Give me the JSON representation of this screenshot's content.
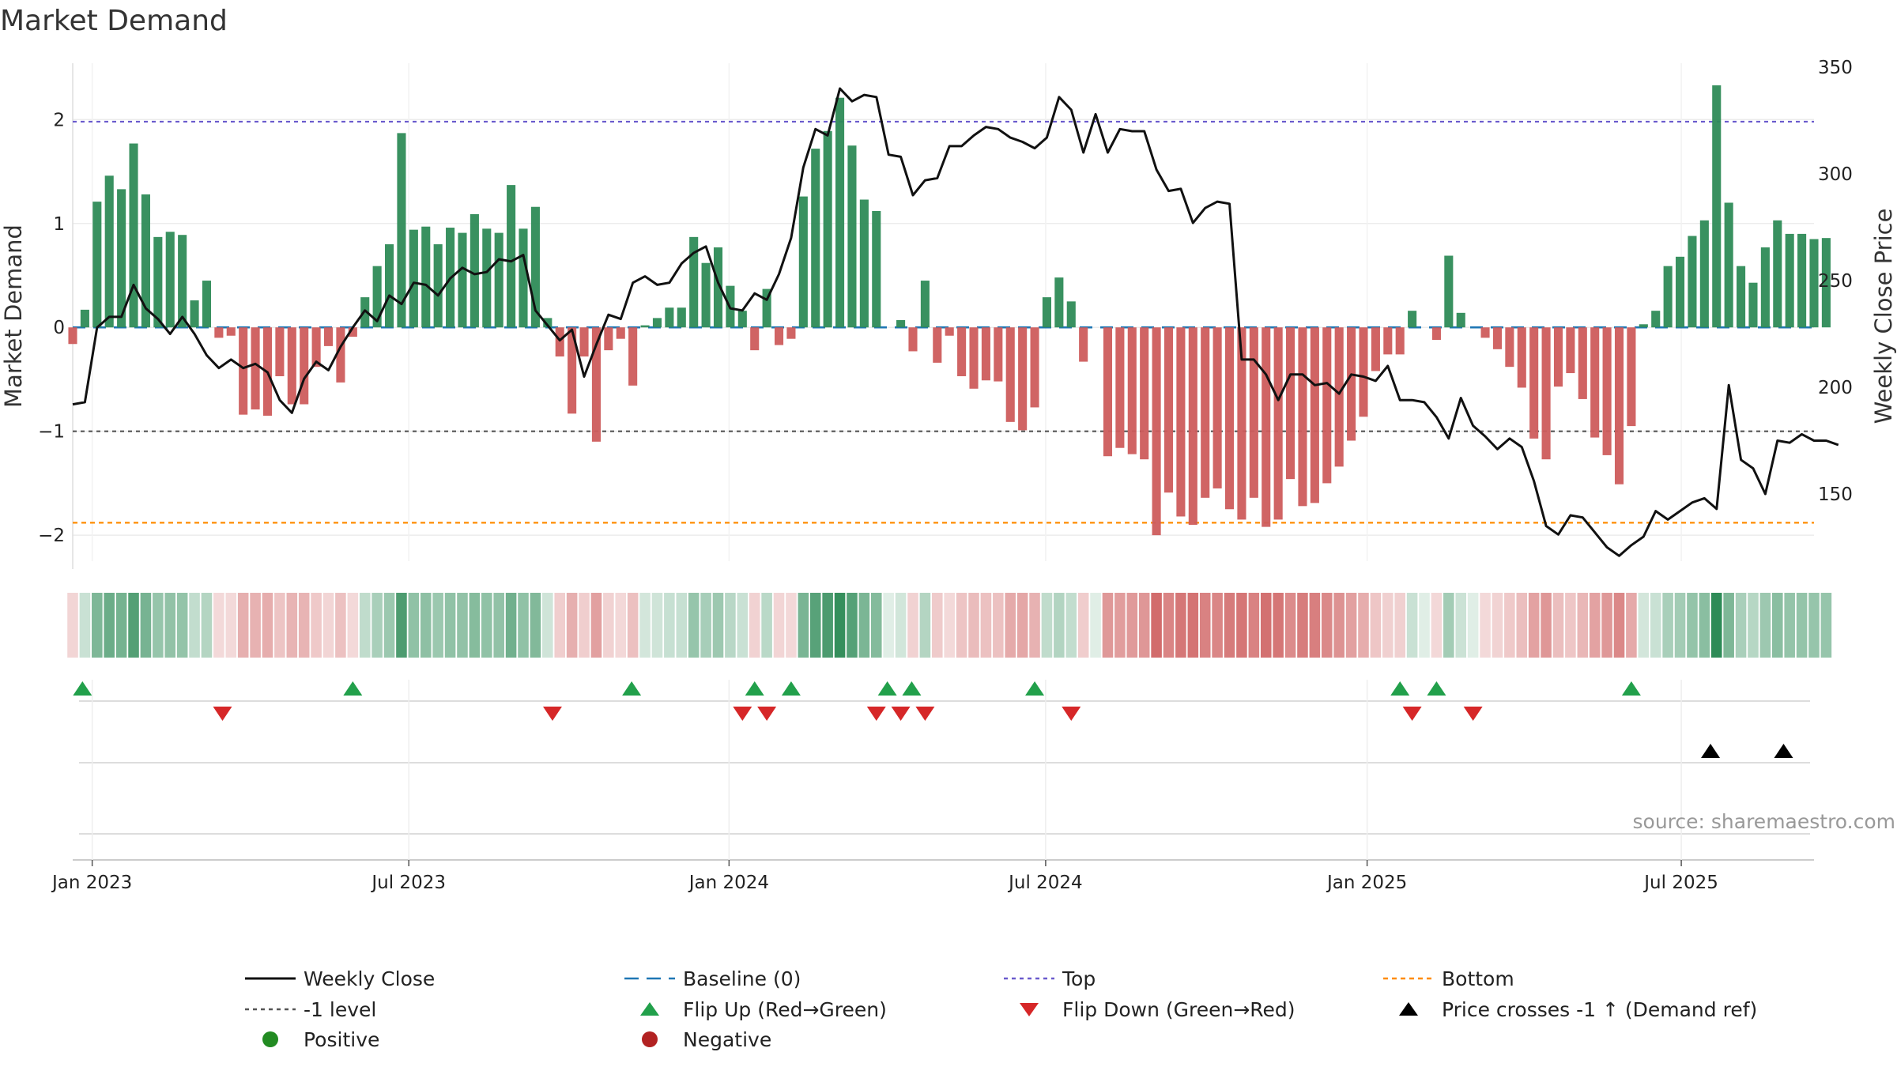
{
  "chart_data": {
    "type": "bar",
    "title": "Market Demand",
    "ylabel": "Market Demand",
    "y2label": "Weekly Close Price",
    "ylim": [
      -2.25,
      2.55
    ],
    "y2lim": [
      115,
      350
    ],
    "yticks": [
      -2,
      -1,
      0,
      1,
      2
    ],
    "y2ticks": [
      150,
      200,
      250,
      300,
      350
    ],
    "x_range_weeks": [
      0,
      143
    ],
    "date_ticks": [
      {
        "label": "Jan 2023",
        "week": 1.6
      },
      {
        "label": "Jul 2023",
        "week": 27.6
      },
      {
        "label": "Jan 2024",
        "week": 53.9
      },
      {
        "label": "Jul 2024",
        "week": 79.9
      },
      {
        "label": "Jan 2025",
        "week": 106.3
      },
      {
        "label": "Jul 2025",
        "week": 132.1
      }
    ],
    "reference_lines": {
      "baseline": 0,
      "top": 1.98,
      "bottom": -1.88,
      "minus_one": -1.0
    },
    "demand_values": [
      -0.16,
      0.17,
      1.21,
      1.46,
      1.33,
      1.77,
      1.28,
      0.87,
      0.92,
      0.89,
      0.26,
      0.45,
      -0.1,
      -0.08,
      -0.84,
      -0.79,
      -0.85,
      -0.47,
      -0.74,
      -0.74,
      -0.38,
      -0.18,
      -0.53,
      -0.09,
      0.29,
      0.59,
      0.8,
      1.87,
      0.94,
      0.97,
      0.8,
      0.96,
      0.91,
      1.09,
      0.95,
      0.91,
      1.37,
      0.95,
      1.16,
      0.09,
      -0.28,
      -0.83,
      -0.28,
      -1.1,
      -0.22,
      -0.11,
      -0.56,
      0.02,
      0.09,
      0.19,
      0.19,
      0.87,
      0.62,
      0.77,
      0.4,
      0.16,
      -0.22,
      0.37,
      -0.17,
      -0.11,
      1.26,
      1.72,
      1.89,
      2.21,
      1.75,
      1.23,
      1.12,
      0,
      0.07,
      -0.23,
      0.45,
      -0.34,
      -0.08,
      -0.47,
      -0.59,
      -0.51,
      -0.52,
      -0.91,
      -0.99,
      -0.77,
      0.29,
      0.48,
      0.25,
      -0.33,
      0,
      -1.24,
      -1.16,
      -1.22,
      -1.27,
      -2.0,
      -1.59,
      -1.82,
      -1.9,
      -1.64,
      -1.55,
      -1.75,
      -1.85,
      -1.64,
      -1.92,
      -1.85,
      -1.46,
      -1.72,
      -1.69,
      -1.5,
      -1.34,
      -1.09,
      -0.86,
      -0.42,
      -0.26,
      -0.26,
      0.16,
      0,
      -0.12,
      0.69,
      0.14,
      0,
      -0.1,
      -0.21,
      -0.38,
      -0.58,
      -1.07,
      -1.27,
      -0.57,
      -0.44,
      -0.69,
      -1.06,
      -1.23,
      -1.51,
      -0.95,
      0.03,
      0.16,
      0.59,
      0.68,
      0.88,
      1.03,
      2.33,
      1.2,
      0.59,
      0.43,
      0.77,
      1.03,
      0.9,
      0.9,
      0.85,
      0.86
    ],
    "close_values": [
      192,
      193,
      228,
      233,
      233,
      248,
      237,
      232,
      225,
      233,
      225,
      215,
      209,
      213,
      209,
      211,
      207,
      194,
      188,
      204,
      212,
      208,
      219,
      228,
      236,
      231,
      243,
      239,
      249,
      248,
      243,
      251,
      256,
      253,
      254,
      260,
      259,
      262,
      236,
      229,
      222,
      227,
      205,
      220,
      234,
      232,
      249,
      252,
      248,
      249,
      258,
      263,
      266,
      249,
      237,
      236,
      244,
      241,
      253,
      270,
      303,
      321,
      318,
      340,
      334,
      337,
      336,
      309,
      308,
      290,
      297,
      298,
      313,
      313,
      318,
      322,
      321,
      317,
      315,
      312,
      317,
      336,
      330,
      310,
      328,
      310,
      321,
      320,
      320,
      302,
      292,
      293,
      277,
      284,
      287,
      286,
      213,
      213,
      206,
      194,
      206,
      206,
      201,
      202,
      197,
      206,
      205,
      203,
      210,
      194,
      194,
      193,
      186,
      176,
      195,
      182,
      177,
      171,
      176,
      172,
      156,
      135,
      131,
      140,
      139,
      132,
      125,
      121,
      126,
      130,
      142,
      138,
      142,
      146,
      148,
      143,
      201,
      166,
      162,
      150,
      175,
      174,
      178,
      175,
      175,
      173
    ],
    "flip_up_weeks": [
      0.8,
      23.0,
      45.9,
      56.0,
      59.0,
      66.9,
      68.9,
      79.0,
      109.0,
      112.0,
      128.0
    ],
    "flip_down_weeks": [
      12.3,
      39.4,
      55.0,
      57.0,
      66.0,
      68.0,
      70.0,
      82.0,
      110.0,
      115.0
    ],
    "cross_weeks": [
      134.5,
      140.5
    ],
    "source": "source: sharemaestro.com",
    "legend": [
      {
        "label": "Weekly Close",
        "key": "close"
      },
      {
        "label": "Baseline (0)",
        "key": "baseline"
      },
      {
        "label": "Top",
        "key": "top"
      },
      {
        "label": "Bottom",
        "key": "bottom"
      },
      {
        "label": "-1 level",
        "key": "minus_one"
      },
      {
        "label": "Flip Up (Red→Green)",
        "key": "flip_up"
      },
      {
        "label": "Flip Down (Green→Red)",
        "key": "flip_down"
      },
      {
        "label": "Price crosses -1 ↑ (Demand ref)",
        "key": "cross"
      },
      {
        "label": "Positive",
        "key": "positive"
      },
      {
        "label": "Negative",
        "key": "negative"
      }
    ],
    "colors": {
      "positive": "#2e8b57",
      "negative": "#cd5c5c",
      "close": "#111111",
      "baseline": "#1f77b4",
      "top": "#6a5acd",
      "bottom": "#ff8c00",
      "minus_one": "#555555",
      "flip_up": "#22a04b",
      "flip_down": "#d62728",
      "cross": "#000000",
      "positive_dot": "#228b22",
      "negative_dot": "#b22222"
    }
  }
}
